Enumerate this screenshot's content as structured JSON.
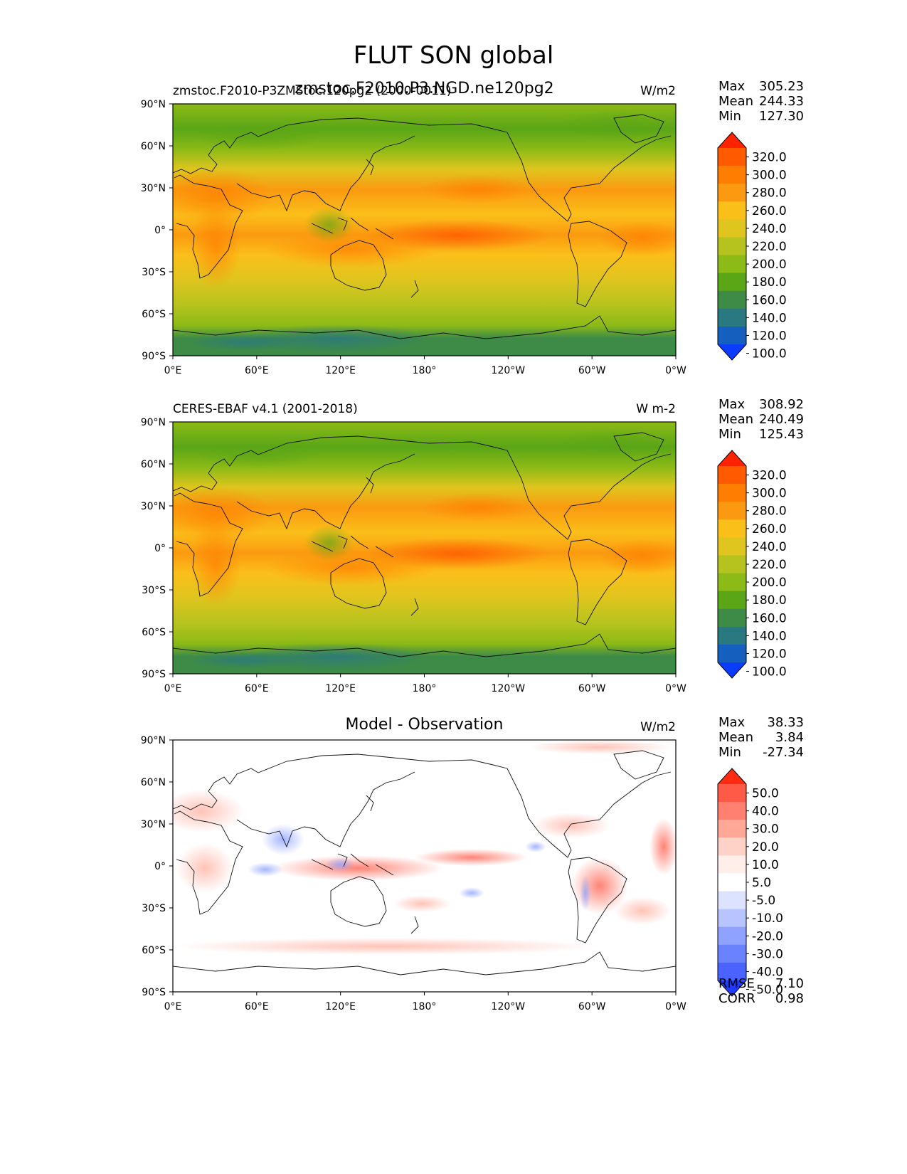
{
  "figure": {
    "title": "FLUT SON global"
  },
  "axes": {
    "lat_ticks": [
      "90°N",
      "60°N",
      "30°N",
      "0°",
      "30°S",
      "60°S",
      "90°S"
    ],
    "lon_ticks": [
      "0°E",
      "60°E",
      "120°E",
      "180°",
      "120°W",
      "60°W",
      "0°W"
    ]
  },
  "panels": [
    {
      "id": "model",
      "title_left": "zmstoc.F2010-P3ZMStoc.120pg2 (2000-0011)",
      "title_center": "zmstoc.F2010.P3.NGD.ne120pg2",
      "units": "W/m2",
      "stats": {
        "labels": [
          "Max",
          "Mean",
          "Min"
        ],
        "values": [
          "305.23",
          "244.33",
          "127.30"
        ]
      }
    },
    {
      "id": "obs",
      "title_left": "CERES-EBAF v4.1 (2001-2018)",
      "title_center": "",
      "units": "W m-2",
      "stats": {
        "labels": [
          "Max",
          "Mean",
          "Min"
        ],
        "values": [
          "308.92",
          "240.49",
          "125.43"
        ]
      }
    },
    {
      "id": "diff",
      "title_left": "",
      "title_center": "Model - Observation",
      "units": "W/m2",
      "stats": {
        "labels": [
          "Max",
          "Mean",
          "Min"
        ],
        "values": [
          "38.33",
          "3.84",
          "-27.34"
        ]
      },
      "extra_stats": {
        "labels": [
          "RMSE",
          "CORR"
        ],
        "values": [
          "7.10",
          "0.98"
        ]
      }
    }
  ],
  "colorbars": {
    "field": {
      "levels": [
        "320.0",
        "300.0",
        "280.0",
        "260.0",
        "240.0",
        "220.0",
        "200.0",
        "180.0",
        "160.0",
        "140.0",
        "120.0",
        "100.0"
      ],
      "colors": [
        "#ff2200",
        "#ff5a00",
        "#ff7d00",
        "#fb9a10",
        "#fbbf1a",
        "#dfc51e",
        "#b6c31e",
        "#8cba16",
        "#5aa617",
        "#3e8b47",
        "#2a7880",
        "#155fbf",
        "#0a3cff"
      ]
    },
    "diff": {
      "levels": [
        "50.0",
        "40.0",
        "30.0",
        "20.0",
        "10.0",
        "5.0",
        "-5.0",
        "-10.0",
        "-20.0",
        "-30.0",
        "-40.0",
        "-50.0"
      ],
      "colors": [
        "#ff2b10",
        "#ff5a48",
        "#ff8070",
        "#ffa898",
        "#ffd2c8",
        "#ffeeea",
        "#ffffff",
        "#dde3ff",
        "#b8c4ff",
        "#8fa2ff",
        "#6b82ff",
        "#4a63ff",
        "#1f3cff"
      ]
    }
  },
  "chart_data": [
    {
      "type": "heatmap",
      "title": "zmstoc.F2010.P3.NGD.ne120pg2",
      "units": "W/m2",
      "x_range": [
        0,
        360
      ],
      "y_range": [
        -90,
        90
      ],
      "stats": {
        "max": 305.23,
        "mean": 244.33,
        "min": 127.3
      },
      "colorbar_levels": [
        100,
        120,
        140,
        160,
        180,
        200,
        220,
        240,
        260,
        280,
        300,
        320
      ]
    },
    {
      "type": "heatmap",
      "title": "CERES-EBAF v4.1 (2001-2018)",
      "units": "W m-2",
      "x_range": [
        0,
        360
      ],
      "y_range": [
        -90,
        90
      ],
      "stats": {
        "max": 308.92,
        "mean": 240.49,
        "min": 125.43
      },
      "colorbar_levels": [
        100,
        120,
        140,
        160,
        180,
        200,
        220,
        240,
        260,
        280,
        300,
        320
      ]
    },
    {
      "type": "heatmap",
      "title": "Model - Observation",
      "units": "W/m2",
      "x_range": [
        0,
        360
      ],
      "y_range": [
        -90,
        90
      ],
      "stats": {
        "max": 38.33,
        "mean": 3.84,
        "min": -27.34,
        "rmse": 7.1,
        "corr": 0.98
      },
      "colorbar_levels": [
        -50,
        -40,
        -30,
        -20,
        -10,
        -5,
        5,
        10,
        20,
        30,
        40,
        50
      ]
    }
  ]
}
